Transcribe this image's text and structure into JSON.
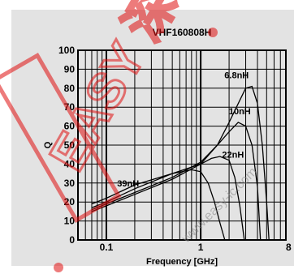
{
  "chart_data": {
    "type": "line",
    "title": "VHF160808H",
    "xlabel": "Frequency [GHz]",
    "ylabel": "Q",
    "xscale": "log",
    "xlim": [
      0.05,
      8
    ],
    "ylim": [
      0,
      100
    ],
    "x_ticks": [
      "0.1",
      "1",
      "8"
    ],
    "y_ticks": [
      "0",
      "10",
      "20",
      "30",
      "40",
      "50",
      "60",
      "70",
      "80",
      "90",
      "100"
    ],
    "grid": true,
    "legend": "none",
    "colors": {
      "background": "#e3e3e3",
      "grid": "#000000",
      "line": "#000000",
      "watermark": "#e01010"
    },
    "series": [
      {
        "name": "6.8nH",
        "x": [
          0.07,
          0.1,
          0.2,
          0.5,
          1,
          1.5,
          2,
          3,
          3.5,
          4,
          4.5,
          5,
          5.3
        ],
        "y": [
          15,
          18,
          24,
          32,
          40,
          50,
          62,
          80,
          81,
          72,
          50,
          20,
          0
        ]
      },
      {
        "name": "10nH",
        "x": [
          0.07,
          0.1,
          0.2,
          0.5,
          1,
          1.5,
          2,
          2.5,
          3,
          3.5,
          4,
          4.3
        ],
        "y": [
          16,
          19,
          25,
          33,
          41,
          50,
          57,
          62,
          60,
          50,
          28,
          0
        ]
      },
      {
        "name": "22nH",
        "x": [
          0.07,
          0.1,
          0.2,
          0.5,
          1,
          1.3,
          1.6,
          2,
          2.3,
          2.6,
          2.9
        ],
        "y": [
          17,
          20,
          27,
          35,
          40,
          43,
          44,
          42,
          33,
          18,
          0
        ]
      },
      {
        "name": "39nH",
        "x": [
          0.07,
          0.1,
          0.2,
          0.5,
          0.8,
          1,
          1.2,
          1.4,
          1.6,
          1.8
        ],
        "y": [
          19,
          22,
          29,
          35,
          37,
          36,
          30,
          20,
          9,
          0
        ]
      }
    ],
    "series_label_positions": [
      {
        "name": "6.8nH",
        "x": 2.4,
        "y": 87
      },
      {
        "name": "10nH",
        "x": 2.6,
        "y": 68
      },
      {
        "name": "22nH",
        "x": 2.2,
        "y": 45
      },
      {
        "name": "39nH",
        "x": 0.17,
        "y": 30
      }
    ]
  },
  "watermark": {
    "text": "EASY 深圳市易容电子",
    "url": "www.easy-ic.com"
  }
}
